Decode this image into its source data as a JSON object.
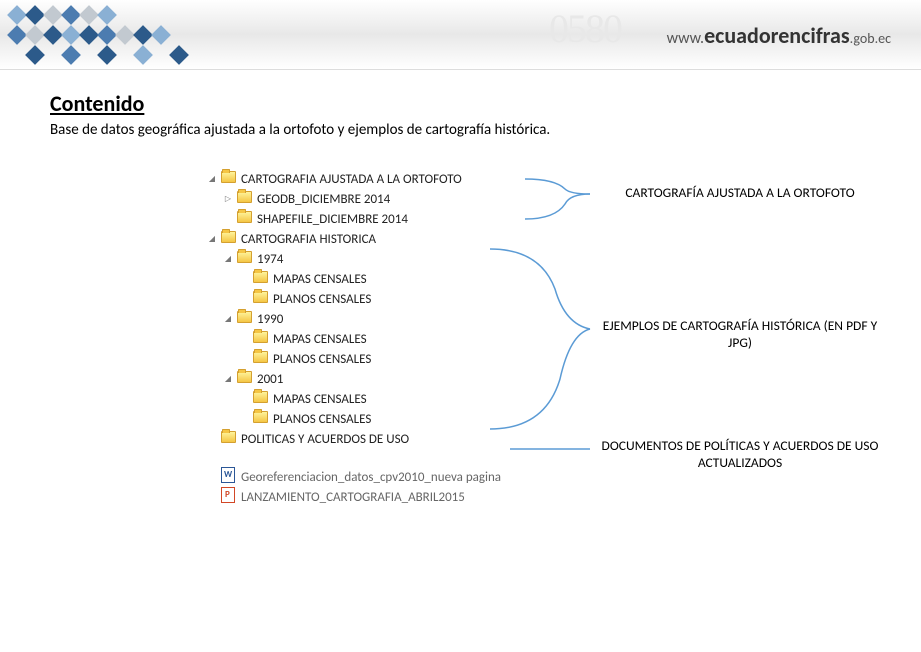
{
  "header": {
    "url_prefix": "www.",
    "brand": "ecuadorencifras",
    "url_suffix": ".gob.ec",
    "watermark": "0580"
  },
  "content": {
    "title": "Contenido",
    "subtitle": "Base de datos geográfica ajustada a la ortofoto y ejemplos de cartografía histórica."
  },
  "cubes": {
    "dark": "#2c5a8a",
    "mid": "#4c7cb0",
    "light": "#8ab0d4",
    "gray": "#c2c9d0"
  },
  "tree": [
    {
      "indent": 0,
      "toggle": "▾",
      "icon": "folder",
      "label": "CARTOGRAFIA AJUSTADA A LA ORTOFOTO"
    },
    {
      "indent": 1,
      "toggle": "▹",
      "icon": "folder",
      "label": "GEODB_DICIEMBRE 2014"
    },
    {
      "indent": 1,
      "toggle": "",
      "icon": "folder",
      "label": "SHAPEFILE_DICIEMBRE 2014"
    },
    {
      "indent": 0,
      "toggle": "▾",
      "icon": "folder",
      "label": "CARTOGRAFIA HISTORICA"
    },
    {
      "indent": 1,
      "toggle": "▾",
      "icon": "folder",
      "label": "1974"
    },
    {
      "indent": 2,
      "toggle": "",
      "icon": "folder",
      "label": "MAPAS CENSALES"
    },
    {
      "indent": 2,
      "toggle": "",
      "icon": "folder",
      "label": "PLANOS CENSALES"
    },
    {
      "indent": 1,
      "toggle": "▾",
      "icon": "folder",
      "label": "1990"
    },
    {
      "indent": 2,
      "toggle": "",
      "icon": "folder",
      "label": "MAPAS CENSALES"
    },
    {
      "indent": 2,
      "toggle": "",
      "icon": "folder",
      "label": "PLANOS CENSALES"
    },
    {
      "indent": 1,
      "toggle": "▾",
      "icon": "folder",
      "label": "2001"
    },
    {
      "indent": 2,
      "toggle": "",
      "icon": "folder",
      "label": "MAPAS CENSALES"
    },
    {
      "indent": 2,
      "toggle": "",
      "icon": "folder",
      "label": "PLANOS CENSALES"
    },
    {
      "indent": 0,
      "toggle": "",
      "icon": "folder",
      "label": "POLITICAS Y ACUERDOS DE USO"
    },
    {
      "indent": 0,
      "toggle": "",
      "icon": "word",
      "label": "Georeferenciacion_datos_cpv2010_nueva pagina",
      "gap": true
    },
    {
      "indent": 0,
      "toggle": "",
      "icon": "ppt",
      "label": "LANZAMIENTO_CARTOGRAFIA_ABRIL2015"
    }
  ],
  "annotations": {
    "a1": "CARTOGRAFÍA AJUSTADA A LA ORTOFOTO",
    "a2": "EJEMPLOS DE CARTOGRAFÍA HISTÓRICA (EN PDF Y JPG)",
    "a3": "DOCUMENTOS DE POLÍTICAS Y ACUERDOS DE USO ACTUALIZADOS"
  },
  "connectors": {
    "color": "#5b9bd5"
  }
}
